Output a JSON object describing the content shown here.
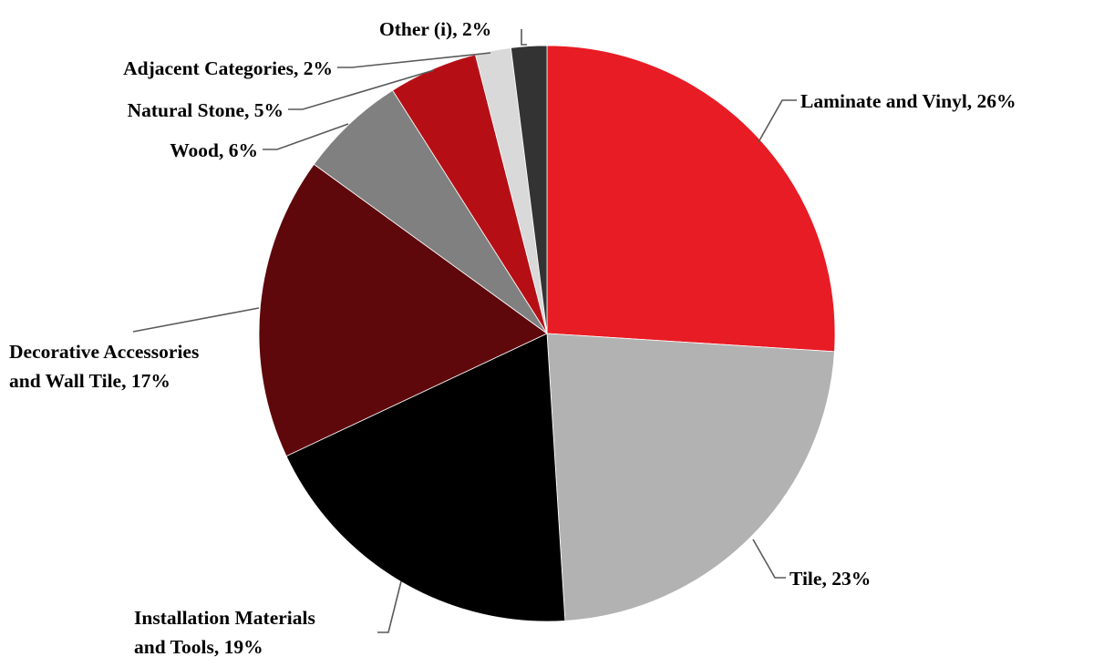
{
  "chart_data": {
    "type": "pie",
    "title": "",
    "start": "top",
    "direction": "clockwise",
    "slices": [
      {
        "label": "Laminate and Vinyl, 26%",
        "category": "Laminate and Vinyl",
        "value": 26,
        "color": "#e81c24"
      },
      {
        "label": "Tile, 23%",
        "category": "Tile",
        "value": 23,
        "color": "#b2b2b2"
      },
      {
        "label": "Installation Materials and Tools, 19%",
        "category": "Installation Materials and Tools",
        "value": 19,
        "color": "#000000"
      },
      {
        "label": "Decorative Accessories and Wall Tile, 17%",
        "category": "Decorative Accessories and Wall Tile",
        "value": 17,
        "color": "#5e080c"
      },
      {
        "label": "Wood, 6%",
        "category": "Wood",
        "value": 6,
        "color": "#808080"
      },
      {
        "label": "Natural Stone, 5%",
        "category": "Natural Stone",
        "value": 5,
        "color": "#b50f15"
      },
      {
        "label": "Adjacent Categories, 2%",
        "category": "Adjacent Categories",
        "value": 2,
        "color": "#d9d9d9"
      },
      {
        "label": "Other (i), 2%",
        "category": "Other (i)",
        "value": 2,
        "color": "#333333"
      }
    ]
  },
  "labels": {
    "laminate": "Laminate and Vinyl, 26%",
    "tile": "Tile, 23%",
    "installation_line1": "Installation Materials",
    "installation_line2": "and Tools, 19%",
    "decorative_line1": "Decorative Accessories",
    "decorative_line2": "and Wall Tile, 17%",
    "wood": "Wood, 6%",
    "natural_stone": "Natural Stone, 5%",
    "adjacent": "Adjacent Categories, 2%",
    "other": "Other (i), 2%"
  }
}
